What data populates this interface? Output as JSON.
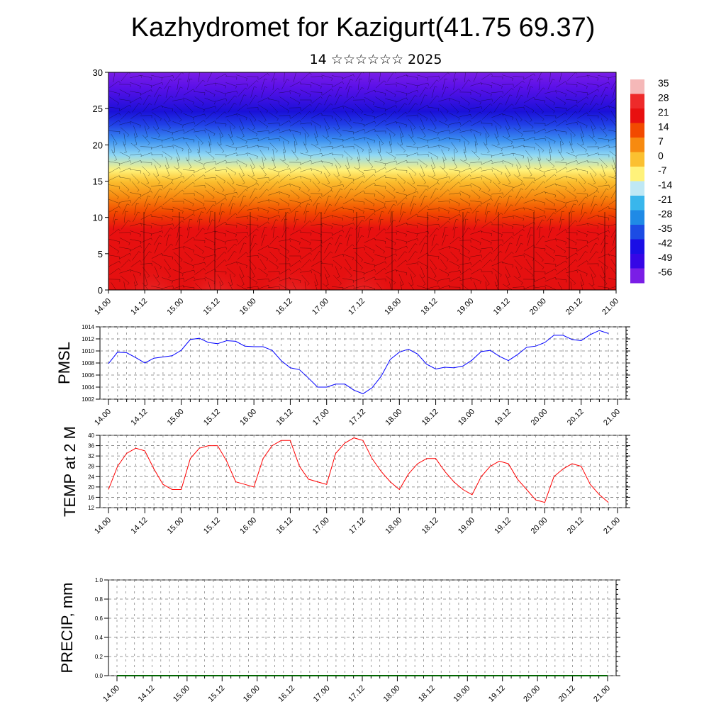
{
  "title": "Kazhydromet for Kazigurt(41.75 69.37)",
  "subtitle": "14 ☆☆☆☆☆☆ 2025",
  "chart_data": [
    {
      "type": "heatmap",
      "description_of_field": "time-height cross section of temperature with wind barbs",
      "xlabel": "",
      "ylabel": "",
      "ylim": [
        0,
        30
      ],
      "y_ticks": [
        0,
        5,
        10,
        15,
        20,
        25,
        30
      ],
      "x_tick_labels": [
        "14.00",
        "14.12",
        "15.00",
        "15.12",
        "16.00",
        "16.12",
        "17.00",
        "17.12",
        "18.00",
        "18.12",
        "19.00",
        "19.12",
        "20.00",
        "20.12",
        "21.00"
      ],
      "colorbar_labels": [
        "35",
        "28",
        "21",
        "14",
        "7",
        "0",
        "-7",
        "-14",
        "-21",
        "-28",
        "-35",
        "-42",
        "-49",
        "-56"
      ],
      "colorbar_colors": [
        "#f5b8b8",
        "#ee2a2a",
        "#e81010",
        "#f24a00",
        "#f78a10",
        "#fbc030",
        "#fff27a",
        "#bfe8f5",
        "#39b6ec",
        "#1f8ae6",
        "#1c4ce4",
        "#1a0ee6",
        "#3606e6",
        "#7a1ee6"
      ]
    },
    {
      "type": "line",
      "ylabel": "PMSL",
      "ylim": [
        1002,
        1014
      ],
      "y_ticks": [
        1002,
        1004,
        1006,
        1008,
        1010,
        1012,
        1014
      ],
      "x_tick_labels": [
        "14.00",
        "14.12",
        "15.00",
        "15.12",
        "16.00",
        "16.12",
        "17.00",
        "17.12",
        "18.00",
        "18.12",
        "19.00",
        "19.12",
        "20.00",
        "20.12",
        "21.00"
      ],
      "color": "#0000ff",
      "series": [
        {
          "x": [
            0,
            3,
            6,
            9,
            12,
            15,
            18,
            21,
            24,
            27,
            30,
            33,
            36,
            39,
            42,
            45,
            48,
            51,
            54,
            57,
            60,
            63,
            66,
            69,
            72,
            75,
            78,
            81,
            84,
            87,
            90,
            93,
            96,
            99,
            102,
            105,
            108,
            111,
            114,
            117,
            120,
            123,
            126,
            129,
            132,
            135,
            138,
            141,
            144,
            147,
            150,
            153,
            156,
            159,
            162,
            165
          ],
          "values": [
            1007.9,
            1009.8,
            1009.7,
            1008.9,
            1008.0,
            1008.8,
            1009.0,
            1009.2,
            1010.1,
            1011.9,
            1012.1,
            1011.4,
            1011.2,
            1011.7,
            1011.6,
            1010.8,
            1010.7,
            1010.7,
            1010.1,
            1008.4,
            1007.2,
            1006.9,
            1005.5,
            1004.0,
            1004.0,
            1004.5,
            1004.5,
            1003.5,
            1002.9,
            1003.9,
            1005.8,
            1008.6,
            1009.8,
            1010.3,
            1009.5,
            1007.8,
            1007.0,
            1007.3,
            1007.2,
            1007.5,
            1008.5,
            1009.9,
            1010.1,
            1009.1,
            1008.4,
            1009.4,
            1010.6,
            1010.8,
            1011.4,
            1012.6,
            1012.6,
            1011.9,
            1011.7,
            1012.7,
            1013.4,
            1012.9
          ]
        }
      ]
    },
    {
      "type": "line",
      "ylabel": "TEMP at 2 M",
      "ylim": [
        12,
        40
      ],
      "y_ticks": [
        12,
        16,
        20,
        24,
        28,
        32,
        36,
        40
      ],
      "x_tick_labels": [
        "14.00",
        "14.12",
        "15.00",
        "15.12",
        "16.00",
        "16.12",
        "17.00",
        "17.12",
        "18.00",
        "18.12",
        "19.00",
        "19.12",
        "20.00",
        "20.12",
        "21.00"
      ],
      "color": "#ff0000",
      "series": [
        {
          "x": [
            0,
            3,
            6,
            9,
            12,
            15,
            18,
            21,
            24,
            27,
            30,
            33,
            36,
            39,
            42,
            45,
            48,
            51,
            54,
            57,
            60,
            63,
            66,
            69,
            72,
            75,
            78,
            81,
            84,
            87,
            90,
            93,
            96,
            99,
            102,
            105,
            108,
            111,
            114,
            117,
            120,
            123,
            126,
            129,
            132,
            135,
            138,
            141,
            144,
            147,
            150,
            153,
            156,
            159,
            162,
            165
          ],
          "values": [
            19,
            28,
            33,
            35,
            34,
            27,
            21,
            19,
            19,
            31,
            35,
            36,
            36,
            30,
            22,
            21,
            20,
            31,
            36,
            38,
            38,
            28,
            23,
            22,
            21,
            33,
            37,
            39,
            38,
            31,
            26,
            22,
            19,
            25,
            29,
            31,
            31,
            26,
            22,
            19,
            17,
            24,
            28,
            30,
            29,
            23,
            19,
            15,
            14,
            24,
            27,
            29,
            28,
            21,
            17,
            14
          ]
        }
      ]
    },
    {
      "type": "line",
      "ylabel": "PRECIP, mm",
      "ylim": [
        0,
        1
      ],
      "y_ticks": [
        "0.0",
        "0.2",
        "0.4",
        "0.6",
        "0.8",
        "1.0"
      ],
      "x_tick_labels": [
        "14.00",
        "14.12",
        "15.00",
        "15.12",
        "16.00",
        "16.12",
        "17.00",
        "17.12",
        "18.00",
        "18.12",
        "19.00",
        "19.12",
        "20.00",
        "20.12",
        "21.00"
      ],
      "color": "#006400",
      "series": [
        {
          "x": [
            0,
            168
          ],
          "values": [
            0,
            0
          ]
        }
      ]
    }
  ]
}
